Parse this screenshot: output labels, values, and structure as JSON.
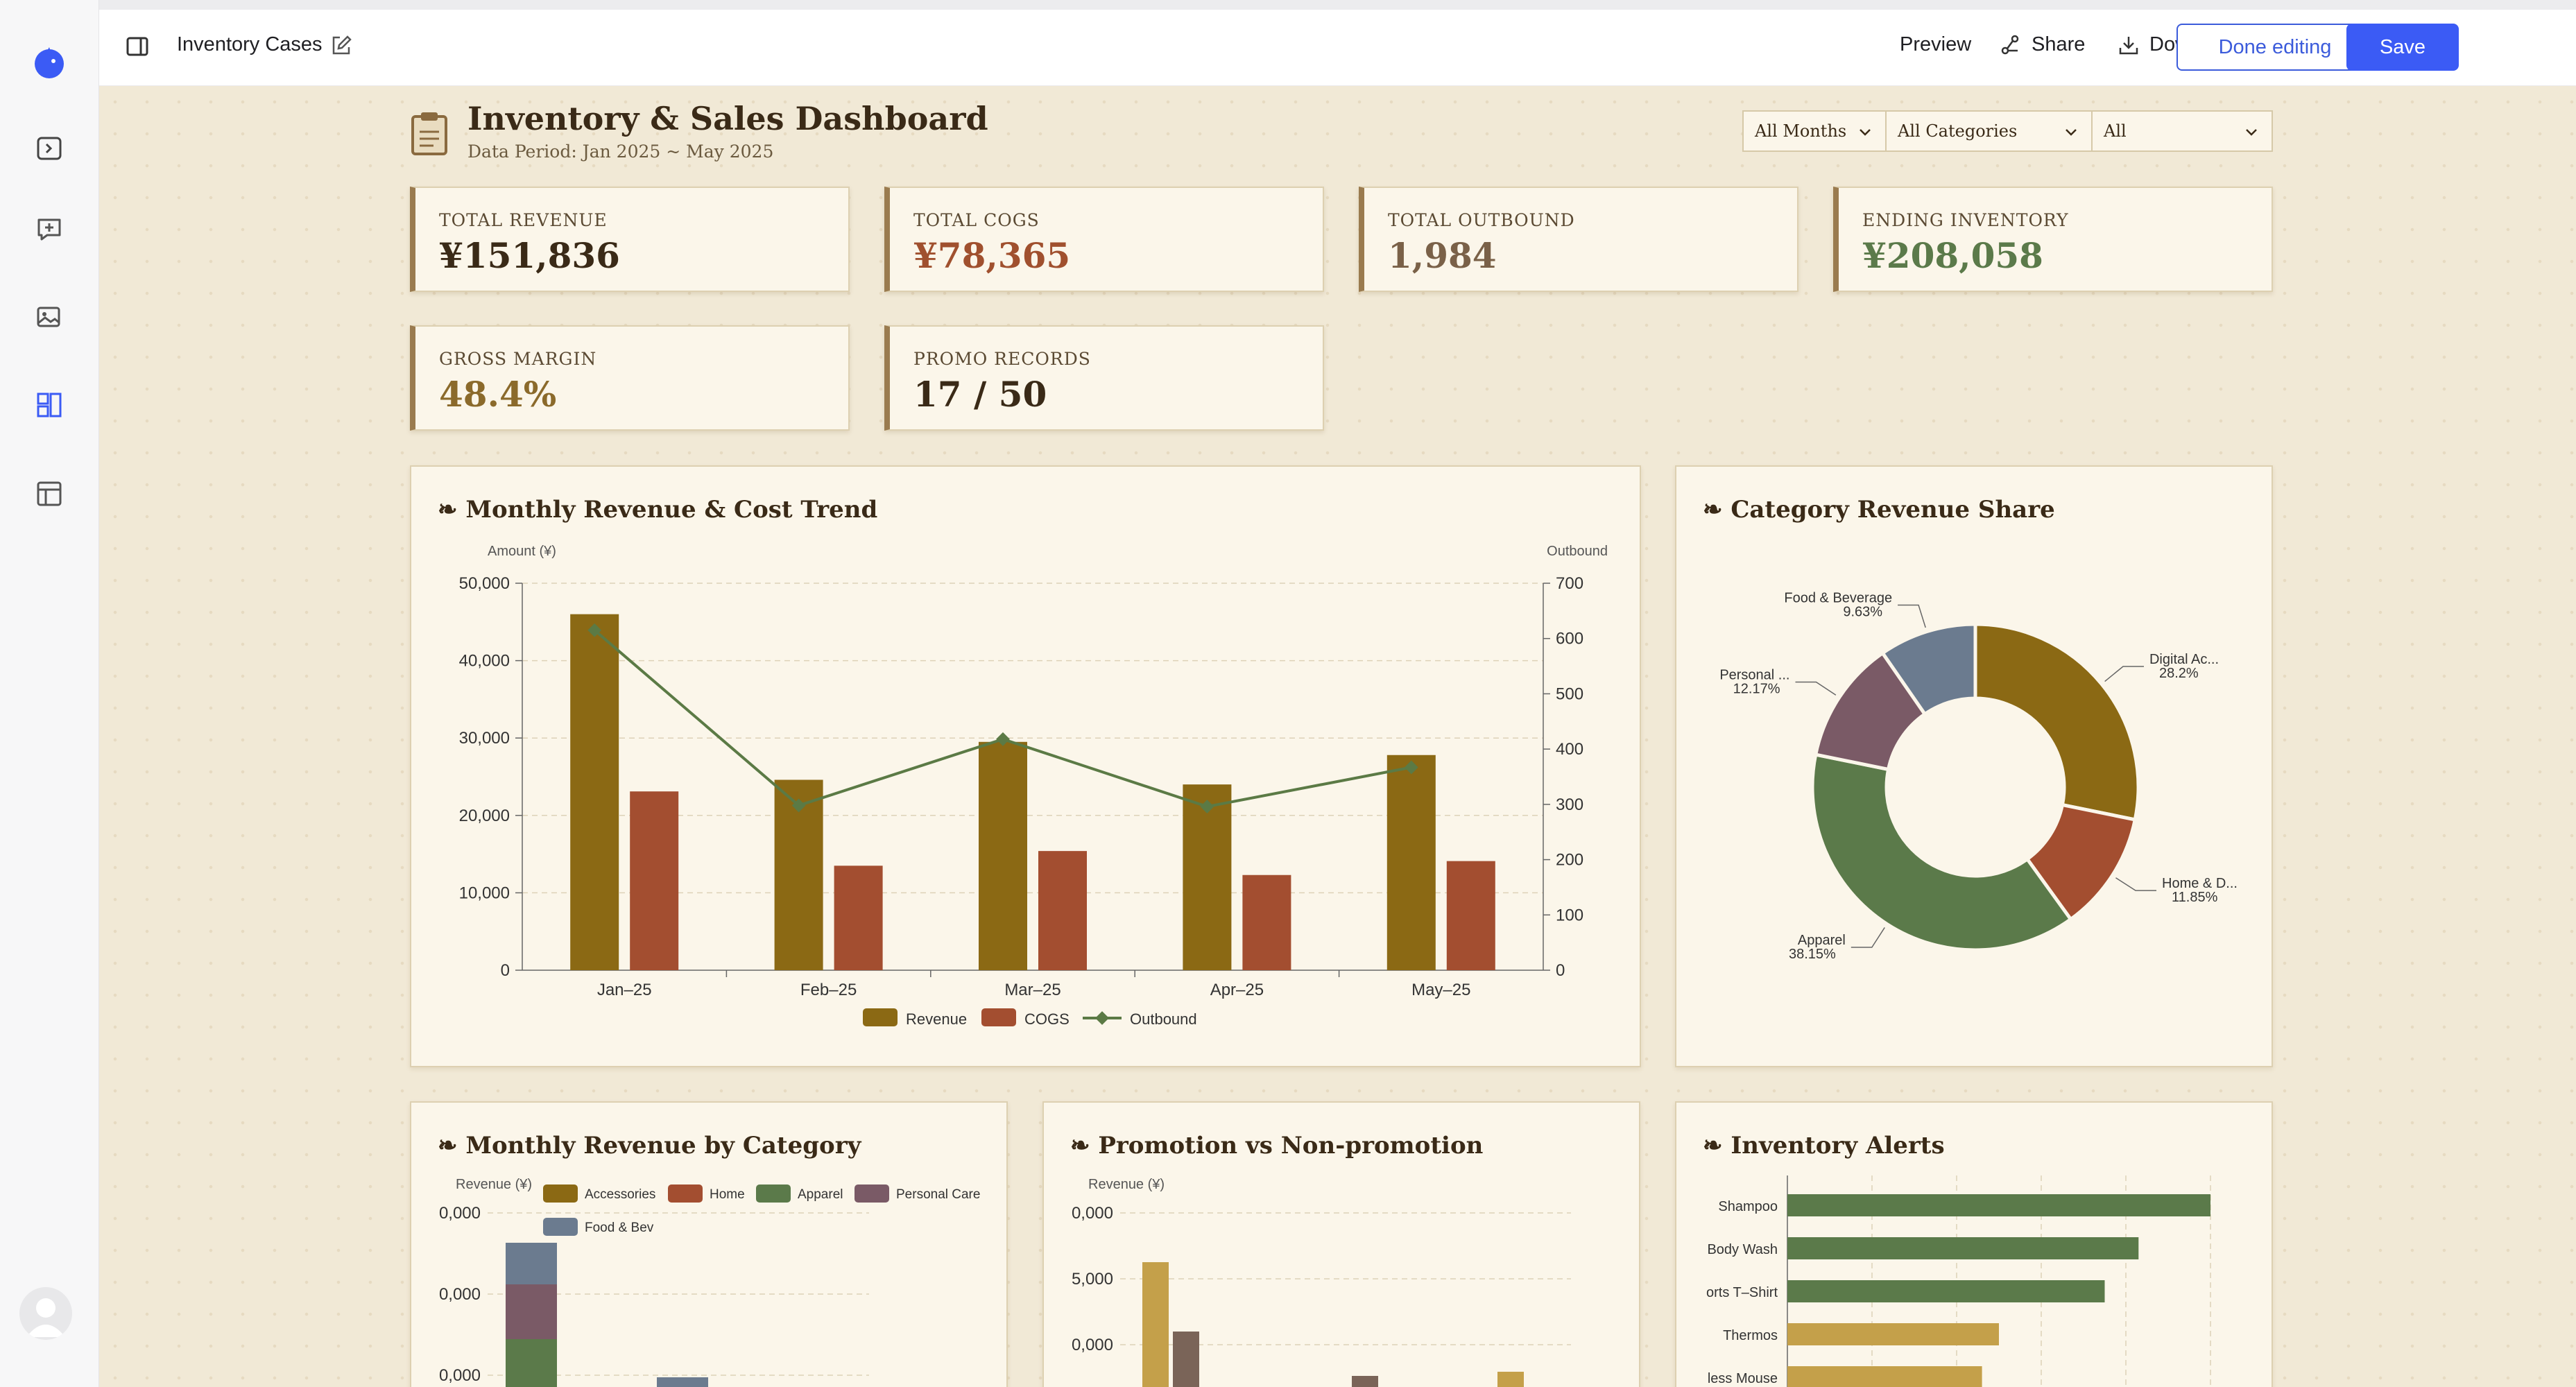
{
  "topbar": {
    "doc_title": "Inventory Cases",
    "preview_label": "Preview",
    "share_label": "Share",
    "download_label": "Download",
    "done_label": "Done editing",
    "save_label": "Save"
  },
  "rail": {
    "icons": [
      "logo-icon",
      "sidebar-toggle-icon",
      "add-chat-icon",
      "image-edit-icon",
      "dashboard-icon",
      "layout-icon"
    ]
  },
  "dashboard": {
    "title": "Inventory & Sales Dashboard",
    "period": "Data Period: Jan 2025 ~ May 2025",
    "filters": {
      "month": "All Months",
      "category": "All Categories",
      "promo": "All"
    },
    "kpis": [
      {
        "label": "TOTAL REVENUE",
        "value": "¥151,836",
        "color": "#3a2a17"
      },
      {
        "label": "TOTAL COGS",
        "value": "¥78,365",
        "color": "#a0502e"
      },
      {
        "label": "TOTAL OUTBOUND",
        "value": "1,984",
        "color": "#7a6148"
      },
      {
        "label": "ENDING INVENTORY",
        "value": "¥208,058",
        "color": "#5b7a4a"
      },
      {
        "label": "GROSS MARGIN",
        "value": "48.4%",
        "color": "#8b6a2b"
      },
      {
        "label": "PROMO RECORDS",
        "value": "17 / 50",
        "color": "#3a2a17"
      }
    ]
  },
  "colors": {
    "revenue": "#8b6914",
    "cogs": "#a34e30",
    "outbound": "#5b7a45",
    "accessories": "#8b6914",
    "home": "#a34e30",
    "apparel": "#5b7a4a",
    "personal_care": "#7a5a66",
    "food_bev": "#6b7b8f",
    "promo_gold": "#c4a04a",
    "nonpromo_brown": "#7a6458"
  },
  "chart_data": [
    {
      "id": "trend",
      "type": "bar",
      "title": "❧ Monthly Revenue & Cost Trend",
      "ylabel": "Amount (¥)",
      "y2label": "Outbound",
      "categories": [
        "Jan–25",
        "Feb–25",
        "Mar–25",
        "Apr–25",
        "May–25"
      ],
      "series": [
        {
          "name": "Revenue",
          "type": "bar",
          "values": [
            46000,
            24600,
            29500,
            24000,
            27800
          ]
        },
        {
          "name": "COGS",
          "type": "bar",
          "values": [
            23100,
            13500,
            15400,
            12300,
            14100
          ]
        },
        {
          "name": "Outbound",
          "type": "line",
          "axis": "right",
          "values": [
            615,
            298,
            418,
            296,
            367
          ]
        }
      ],
      "ylim": [
        0,
        50000
      ],
      "yticks": [
        "0",
        "10,000",
        "20,000",
        "30,000",
        "40,000",
        "50,000"
      ],
      "y2lim": [
        0,
        700
      ],
      "y2ticks": [
        "0",
        "100",
        "200",
        "300",
        "400",
        "500",
        "600",
        "700"
      ],
      "legend": "bottom",
      "grid": true
    },
    {
      "id": "share",
      "type": "pie",
      "title": "❧ Category Revenue Share",
      "slices": [
        {
          "label": "Digital Ac...",
          "pct_label": "28.2%",
          "value": 28.2,
          "color": "#8b6914"
        },
        {
          "label": "Home & D...",
          "pct_label": "11.85%",
          "value": 11.85,
          "color": "#a34e30"
        },
        {
          "label": "Apparel",
          "pct_label": "38.15%",
          "value": 38.15,
          "color": "#5b7a4a"
        },
        {
          "label": "Personal ...",
          "pct_label": "12.17%",
          "value": 12.17,
          "color": "#7a5a66"
        },
        {
          "label": "Food & Beverage",
          "pct_label": "9.63%",
          "value": 9.63,
          "color": "#6b7b8f"
        }
      ]
    },
    {
      "id": "bycat",
      "type": "bar",
      "title": "❧ Monthly Revenue by Category",
      "ylabel": "Revenue (¥)",
      "legend_items": [
        "Accessories",
        "Home",
        "Apparel",
        "Personal Care",
        "Food & Bev"
      ],
      "visible_ticks": [
        "0,000",
        "0,000",
        "0,000"
      ]
    },
    {
      "id": "promo",
      "type": "bar",
      "title": "❧ Promotion vs Non-promotion",
      "ylabel": "Revenue (¥)",
      "visible_ticks": [
        "0,000",
        "5,000",
        "0,000"
      ]
    },
    {
      "id": "alerts",
      "type": "bar",
      "title": "❧ Inventory Alerts",
      "categories": [
        "Shampoo",
        "Body Wash",
        "orts T–Shirt",
        "Thermos",
        "less Mouse"
      ],
      "values": [
        100,
        83,
        75,
        50,
        46
      ],
      "bar_colors": [
        "#5b7a4a",
        "#5b7a4a",
        "#5b7a4a",
        "#c4a04a",
        "#c4a04a"
      ]
    }
  ]
}
